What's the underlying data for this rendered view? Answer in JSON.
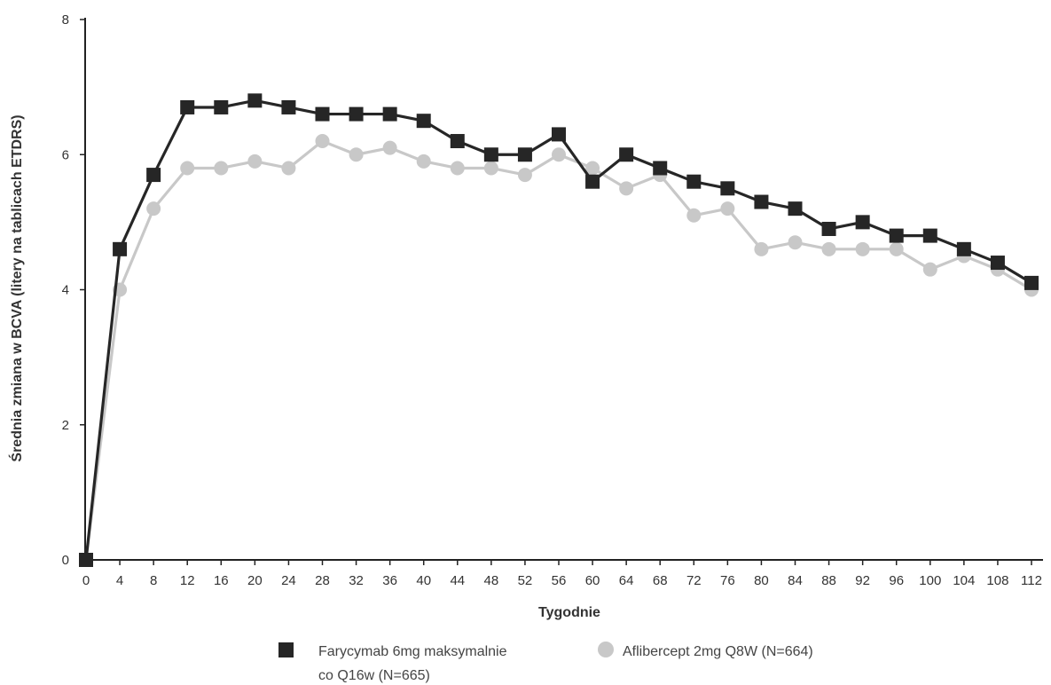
{
  "chart_data": {
    "type": "line",
    "title": "",
    "xlabel": "Tygodnie",
    "ylabel": "Średnia zmiana w BCVA (litery na tablicach  ETDRS)",
    "x": [
      0,
      4,
      8,
      12,
      16,
      20,
      24,
      28,
      32,
      36,
      40,
      44,
      48,
      52,
      56,
      60,
      64,
      68,
      72,
      76,
      80,
      84,
      88,
      92,
      96,
      100,
      104,
      108,
      112
    ],
    "xlim": [
      0,
      112
    ],
    "ylim": [
      0,
      8
    ],
    "yticks": [
      0,
      2,
      4,
      6,
      8
    ],
    "grid": false,
    "legend_position": "bottom",
    "series": [
      {
        "name": "Farycymab 6mg maksymalnie co Q16w (N=665)",
        "name_lines": [
          "Farycymab 6mg maksymalnie",
          "co Q16w (N=665)"
        ],
        "marker": "square",
        "color": "#262626",
        "values": [
          0,
          4.6,
          5.7,
          6.7,
          6.7,
          6.8,
          6.7,
          6.6,
          6.6,
          6.6,
          6.5,
          6.2,
          6.0,
          6.0,
          6.3,
          5.6,
          6.0,
          5.8,
          5.6,
          5.5,
          5.3,
          5.2,
          4.9,
          5.0,
          4.8,
          4.8,
          4.6,
          4.4,
          4.1
        ]
      },
      {
        "name": "Aflibercept 2mg Q8W (N=664)",
        "name_lines": [
          "Aflibercept 2mg Q8W (N=664)"
        ],
        "marker": "circle",
        "color": "#c8c8c8",
        "values": [
          0,
          4.0,
          5.2,
          5.8,
          5.8,
          5.9,
          5.8,
          6.2,
          6.0,
          6.1,
          5.9,
          5.8,
          5.8,
          5.7,
          6.0,
          5.8,
          5.5,
          5.7,
          5.1,
          5.2,
          4.6,
          4.7,
          4.6,
          4.6,
          4.6,
          4.3,
          4.5,
          4.3,
          4.0
        ]
      }
    ]
  }
}
